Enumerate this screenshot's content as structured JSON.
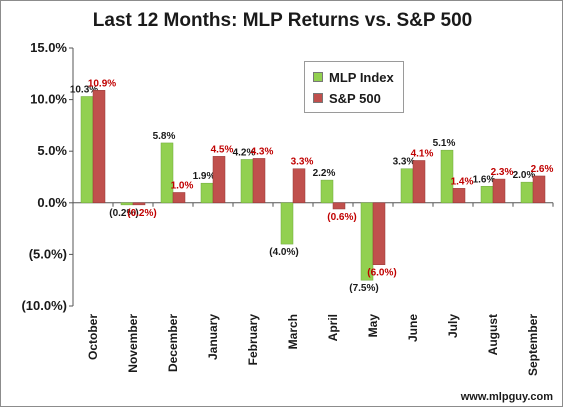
{
  "chart_data": {
    "type": "bar",
    "title": "Last 12 Months: MLP Returns vs. S&P 500",
    "xlabel": "",
    "ylabel": "",
    "ylim": [
      -10,
      15
    ],
    "yticks": [
      15,
      10,
      5,
      0,
      -5,
      -10
    ],
    "ytick_labels": [
      "15.0%",
      "10.0%",
      "5.0%",
      "0.0%",
      "(5.0%)",
      "(10.0%)"
    ],
    "grid": false,
    "legend": "top-right",
    "categories": [
      "October",
      "November",
      "December",
      "January",
      "February",
      "March",
      "April",
      "May",
      "June",
      "July",
      "August",
      "September"
    ],
    "series": [
      {
        "name": "MLP Index",
        "color": "#92d050",
        "label_color": "#1a1a1a",
        "values": [
          10.3,
          -0.2,
          5.8,
          1.9,
          4.2,
          -4.0,
          2.2,
          -7.5,
          3.3,
          5.1,
          1.6,
          2.0
        ],
        "labels": [
          "10.3%",
          "(0.2%)",
          "5.8%",
          "1.9%",
          "4.2%",
          "(4.0%)",
          "2.2%",
          "(7.5%)",
          "3.3%",
          "5.1%",
          "1.6%",
          "2.0%"
        ]
      },
      {
        "name": "S&P 500",
        "color": "#c0504d",
        "label_color": "#c00000",
        "values": [
          10.9,
          -0.2,
          1.0,
          4.5,
          4.3,
          3.3,
          -0.6,
          -6.0,
          4.1,
          1.4,
          2.3,
          2.6
        ],
        "labels": [
          "10.9%",
          "(0.2%)",
          "1.0%",
          "4.5%",
          "4.3%",
          "3.3%",
          "(0.6%)",
          "(6.0%)",
          "4.1%",
          "1.4%",
          "2.3%",
          "2.6%"
        ]
      }
    ]
  },
  "watermark": "www.mlpguy.com"
}
